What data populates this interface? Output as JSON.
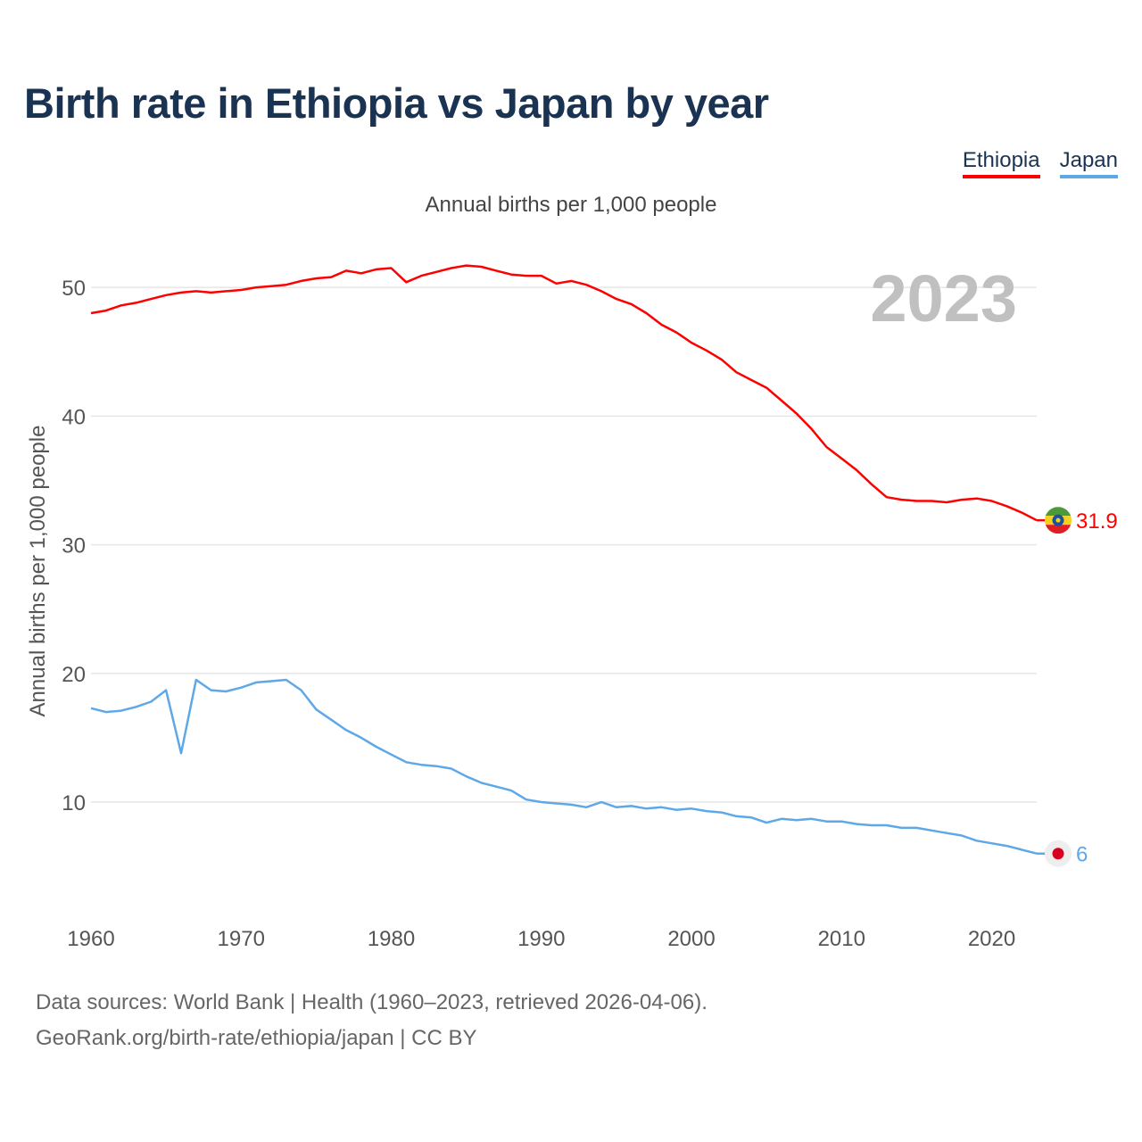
{
  "title": "Birth rate in Ethiopia vs Japan by year",
  "subtitle": "Annual births per 1,000 people",
  "legend": [
    {
      "label": "Ethiopia",
      "color": "#ff0000"
    },
    {
      "label": "Japan",
      "color": "#5ea8e8"
    }
  ],
  "footer": {
    "line1": "Data sources: World Bank | Health (1960–2023, retrieved 2026-04-06).",
    "line2": "GeoRank.org/birth-rate/ethiopia/japan | CC BY"
  },
  "chart_data": {
    "type": "line",
    "title": "Birth rate in Ethiopia vs Japan by year",
    "ylabel": "Annual births per 1,000 people",
    "xlabel": "",
    "year_label": "2023",
    "xlim": [
      1960,
      2023
    ],
    "ylim": [
      3,
      55
    ],
    "x_ticks": [
      1960,
      1970,
      1980,
      1990,
      2000,
      2010,
      2020
    ],
    "y_ticks": [
      10,
      20,
      30,
      40,
      50
    ],
    "x": [
      1960,
      1961,
      1962,
      1963,
      1964,
      1965,
      1966,
      1967,
      1968,
      1969,
      1970,
      1971,
      1972,
      1973,
      1974,
      1975,
      1976,
      1977,
      1978,
      1979,
      1980,
      1981,
      1982,
      1983,
      1984,
      1985,
      1986,
      1987,
      1988,
      1989,
      1990,
      1991,
      1992,
      1993,
      1994,
      1995,
      1996,
      1997,
      1998,
      1999,
      2000,
      2001,
      2002,
      2003,
      2004,
      2005,
      2006,
      2007,
      2008,
      2009,
      2010,
      2011,
      2012,
      2013,
      2014,
      2015,
      2016,
      2017,
      2018,
      2019,
      2020,
      2021,
      2022,
      2023
    ],
    "series": [
      {
        "name": "Ethiopia",
        "color": "#ff0000",
        "end_label": "31.9",
        "values": [
          48.0,
          48.2,
          48.6,
          48.8,
          49.1,
          49.4,
          49.6,
          49.7,
          49.6,
          49.7,
          49.8,
          50.0,
          50.1,
          50.2,
          50.5,
          50.7,
          50.8,
          51.3,
          51.1,
          51.4,
          51.5,
          50.4,
          50.9,
          51.2,
          51.5,
          51.7,
          51.6,
          51.3,
          51.0,
          50.9,
          50.9,
          50.3,
          50.5,
          50.2,
          49.7,
          49.1,
          48.7,
          48.0,
          47.1,
          46.5,
          45.7,
          45.1,
          44.4,
          43.4,
          42.8,
          42.2,
          41.2,
          40.2,
          39.0,
          37.6,
          36.7,
          35.8,
          34.7,
          33.7,
          33.5,
          33.4,
          33.4,
          33.3,
          33.5,
          33.6,
          33.4,
          33.0,
          32.5,
          31.9
        ]
      },
      {
        "name": "Japan",
        "color": "#5ea8e8",
        "end_label": "6",
        "values": [
          17.3,
          17.0,
          17.1,
          17.4,
          17.8,
          18.7,
          13.8,
          19.5,
          18.7,
          18.6,
          18.9,
          19.3,
          19.4,
          19.5,
          18.7,
          17.2,
          16.4,
          15.6,
          15.0,
          14.3,
          13.7,
          13.1,
          12.9,
          12.8,
          12.6,
          12.0,
          11.5,
          11.2,
          10.9,
          10.2,
          10.0,
          9.9,
          9.8,
          9.6,
          10.0,
          9.6,
          9.7,
          9.5,
          9.6,
          9.4,
          9.5,
          9.3,
          9.2,
          8.9,
          8.8,
          8.4,
          8.7,
          8.6,
          8.7,
          8.5,
          8.5,
          8.3,
          8.2,
          8.2,
          8.0,
          8.0,
          7.8,
          7.6,
          7.4,
          7.0,
          6.8,
          6.6,
          6.3,
          6.0
        ]
      }
    ]
  }
}
